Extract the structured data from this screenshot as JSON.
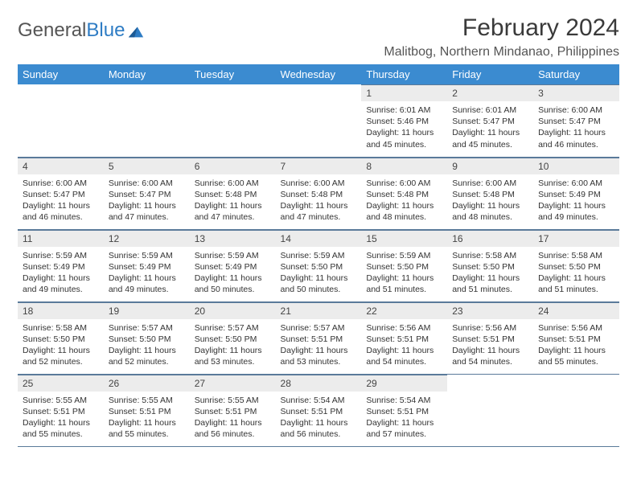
{
  "logo": {
    "word1": "General",
    "word2": "Blue"
  },
  "title": "February 2024",
  "location": "Malitbog, Northern Mindanao, Philippines",
  "colors": {
    "header_bg": "#3b8bd0",
    "header_text": "#ffffff",
    "daynum_bg": "#ececec",
    "border": "#5a7a9a",
    "logo_gray": "#555555",
    "logo_blue": "#2e7cc4"
  },
  "fonts": {
    "title_size": 30,
    "location_size": 16,
    "header_size": 13,
    "daynum_size": 12,
    "body_size": 10.5
  },
  "day_headers": [
    "Sunday",
    "Monday",
    "Tuesday",
    "Wednesday",
    "Thursday",
    "Friday",
    "Saturday"
  ],
  "weeks": [
    [
      null,
      null,
      null,
      null,
      {
        "n": "1",
        "sunrise": "6:01 AM",
        "sunset": "5:46 PM",
        "daylight": "11 hours and 45 minutes."
      },
      {
        "n": "2",
        "sunrise": "6:01 AM",
        "sunset": "5:47 PM",
        "daylight": "11 hours and 45 minutes."
      },
      {
        "n": "3",
        "sunrise": "6:00 AM",
        "sunset": "5:47 PM",
        "daylight": "11 hours and 46 minutes."
      }
    ],
    [
      {
        "n": "4",
        "sunrise": "6:00 AM",
        "sunset": "5:47 PM",
        "daylight": "11 hours and 46 minutes."
      },
      {
        "n": "5",
        "sunrise": "6:00 AM",
        "sunset": "5:47 PM",
        "daylight": "11 hours and 47 minutes."
      },
      {
        "n": "6",
        "sunrise": "6:00 AM",
        "sunset": "5:48 PM",
        "daylight": "11 hours and 47 minutes."
      },
      {
        "n": "7",
        "sunrise": "6:00 AM",
        "sunset": "5:48 PM",
        "daylight": "11 hours and 47 minutes."
      },
      {
        "n": "8",
        "sunrise": "6:00 AM",
        "sunset": "5:48 PM",
        "daylight": "11 hours and 48 minutes."
      },
      {
        "n": "9",
        "sunrise": "6:00 AM",
        "sunset": "5:48 PM",
        "daylight": "11 hours and 48 minutes."
      },
      {
        "n": "10",
        "sunrise": "6:00 AM",
        "sunset": "5:49 PM",
        "daylight": "11 hours and 49 minutes."
      }
    ],
    [
      {
        "n": "11",
        "sunrise": "5:59 AM",
        "sunset": "5:49 PM",
        "daylight": "11 hours and 49 minutes."
      },
      {
        "n": "12",
        "sunrise": "5:59 AM",
        "sunset": "5:49 PM",
        "daylight": "11 hours and 49 minutes."
      },
      {
        "n": "13",
        "sunrise": "5:59 AM",
        "sunset": "5:49 PM",
        "daylight": "11 hours and 50 minutes."
      },
      {
        "n": "14",
        "sunrise": "5:59 AM",
        "sunset": "5:50 PM",
        "daylight": "11 hours and 50 minutes."
      },
      {
        "n": "15",
        "sunrise": "5:59 AM",
        "sunset": "5:50 PM",
        "daylight": "11 hours and 51 minutes."
      },
      {
        "n": "16",
        "sunrise": "5:58 AM",
        "sunset": "5:50 PM",
        "daylight": "11 hours and 51 minutes."
      },
      {
        "n": "17",
        "sunrise": "5:58 AM",
        "sunset": "5:50 PM",
        "daylight": "11 hours and 51 minutes."
      }
    ],
    [
      {
        "n": "18",
        "sunrise": "5:58 AM",
        "sunset": "5:50 PM",
        "daylight": "11 hours and 52 minutes."
      },
      {
        "n": "19",
        "sunrise": "5:57 AM",
        "sunset": "5:50 PM",
        "daylight": "11 hours and 52 minutes."
      },
      {
        "n": "20",
        "sunrise": "5:57 AM",
        "sunset": "5:50 PM",
        "daylight": "11 hours and 53 minutes."
      },
      {
        "n": "21",
        "sunrise": "5:57 AM",
        "sunset": "5:51 PM",
        "daylight": "11 hours and 53 minutes."
      },
      {
        "n": "22",
        "sunrise": "5:56 AM",
        "sunset": "5:51 PM",
        "daylight": "11 hours and 54 minutes."
      },
      {
        "n": "23",
        "sunrise": "5:56 AM",
        "sunset": "5:51 PM",
        "daylight": "11 hours and 54 minutes."
      },
      {
        "n": "24",
        "sunrise": "5:56 AM",
        "sunset": "5:51 PM",
        "daylight": "11 hours and 55 minutes."
      }
    ],
    [
      {
        "n": "25",
        "sunrise": "5:55 AM",
        "sunset": "5:51 PM",
        "daylight": "11 hours and 55 minutes."
      },
      {
        "n": "26",
        "sunrise": "5:55 AM",
        "sunset": "5:51 PM",
        "daylight": "11 hours and 55 minutes."
      },
      {
        "n": "27",
        "sunrise": "5:55 AM",
        "sunset": "5:51 PM",
        "daylight": "11 hours and 56 minutes."
      },
      {
        "n": "28",
        "sunrise": "5:54 AM",
        "sunset": "5:51 PM",
        "daylight": "11 hours and 56 minutes."
      },
      {
        "n": "29",
        "sunrise": "5:54 AM",
        "sunset": "5:51 PM",
        "daylight": "11 hours and 57 minutes."
      },
      null,
      null
    ]
  ],
  "labels": {
    "sunrise": "Sunrise:",
    "sunset": "Sunset:",
    "daylight": "Daylight:"
  }
}
